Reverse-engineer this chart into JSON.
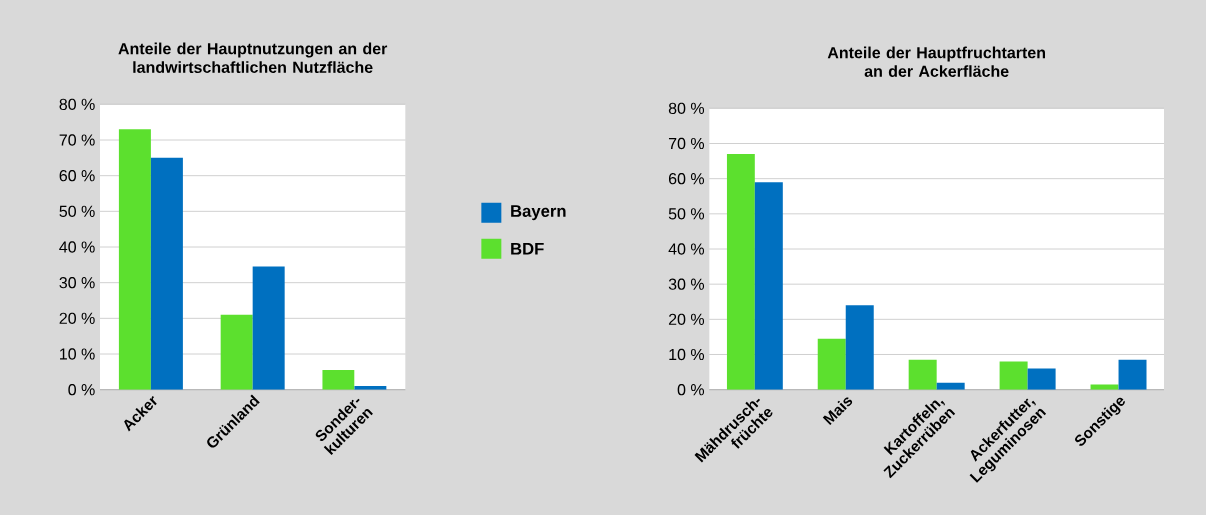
{
  "chart_data": [
    {
      "type": "bar",
      "title": "Anteile der Hauptnutzungen an der landwirtschaftlichen Nutzfläche",
      "categories": [
        "Acker",
        "Grünland",
        "Sonder- kulturen"
      ],
      "series": [
        {
          "name": "BDF",
          "color": "#5ce02e",
          "values": [
            73,
            21,
            5.5
          ]
        },
        {
          "name": "Bayern",
          "color": "#0070c0",
          "values": [
            65,
            34.5,
            1
          ]
        }
      ],
      "ylim": [
        0,
        80
      ],
      "yticks": [
        {
          "value": 0,
          "label": "0 %"
        },
        {
          "value": 10,
          "label": "10 %"
        },
        {
          "value": 20,
          "label": "20 %"
        },
        {
          "value": 30,
          "label": "30 %"
        },
        {
          "value": 40,
          "label": "40 %"
        },
        {
          "value": 50,
          "label": "50 %"
        },
        {
          "value": 60,
          "label": "60 %"
        },
        {
          "value": 70,
          "label": "70 %"
        },
        {
          "value": 80,
          "label": "80 %"
        }
      ],
      "grid": "y",
      "legend": "right"
    },
    {
      "type": "bar",
      "title": "Anteile der Hauptfruchtarten an der Ackerfläche",
      "categories": [
        "Mähdrusch- früchte",
        "Mais",
        "Kartoffeln, Zuckerrüben",
        "Ackerfutter, Leguminosen",
        "Sonstige"
      ],
      "series": [
        {
          "color": "#5ce02e",
          "values": [
            67,
            14.5,
            8.5,
            8,
            1.5
          ]
        },
        {
          "color": "#0070c0",
          "values": [
            59,
            24,
            2,
            6,
            8.5
          ]
        }
      ],
      "ylim": [
        0,
        80
      ],
      "yticks": [
        {
          "value": 0,
          "label": "0 %"
        },
        {
          "value": 10,
          "label": "10 %"
        },
        {
          "value": 20,
          "label": "20 %"
        },
        {
          "value": 30,
          "label": "30 %"
        },
        {
          "value": 40,
          "label": "40 %"
        },
        {
          "value": 50,
          "label": "50 %"
        },
        {
          "value": 60,
          "label": "60 %"
        },
        {
          "value": 70,
          "label": "70 %"
        },
        {
          "value": 80,
          "label": "80 %"
        }
      ],
      "grid": "y"
    }
  ]
}
